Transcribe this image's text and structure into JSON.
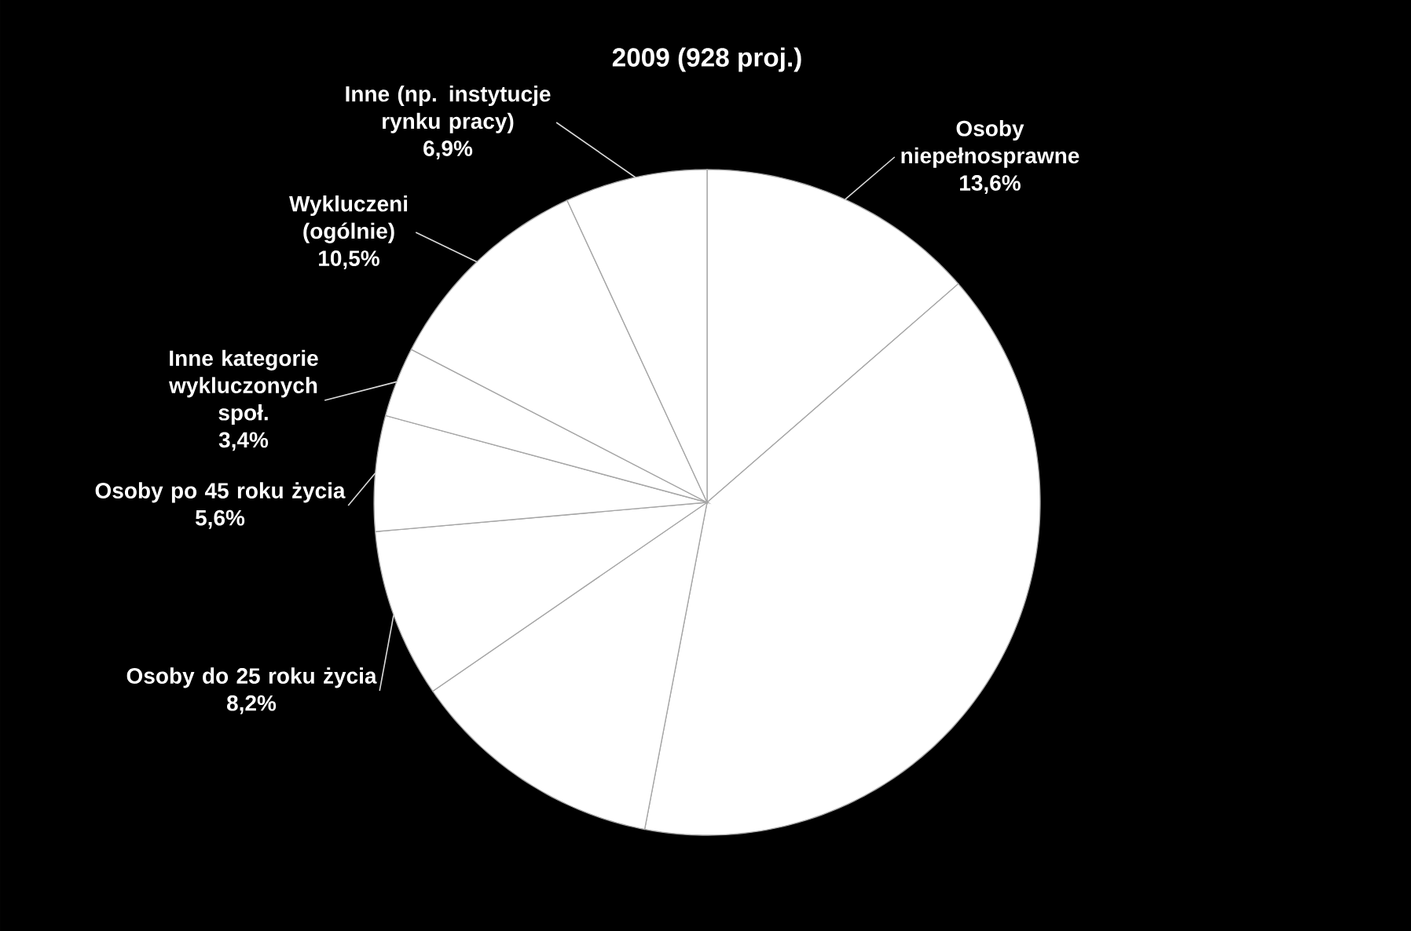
{
  "chart_data": {
    "type": "pie",
    "title": "2009 (928 proj.)",
    "categories": [
      "Osoby niepełnosprawne",
      null,
      null,
      "Osoby do 25 roku życia",
      "Osoby po 45 roku życia",
      "Inne kategorie wykluczonych społ.",
      "Wykluczeni (ogólnie)",
      "Inne (np. instytucje rynku pracy)"
    ],
    "values": [
      13.6,
      39.4,
      12.4,
      8.2,
      5.6,
      3.4,
      10.5,
      6.9
    ],
    "value_labels": [
      "13,6%",
      null,
      null,
      "8,2%",
      "5,6%",
      "3,4%",
      "10,5%",
      "6,9%"
    ],
    "colors": [
      "#ffffff",
      "#ffffff",
      "#ffffff",
      "#ffffff",
      "#ffffff",
      "#ffffff",
      "#ffffff",
      "#ffffff"
    ]
  }
}
